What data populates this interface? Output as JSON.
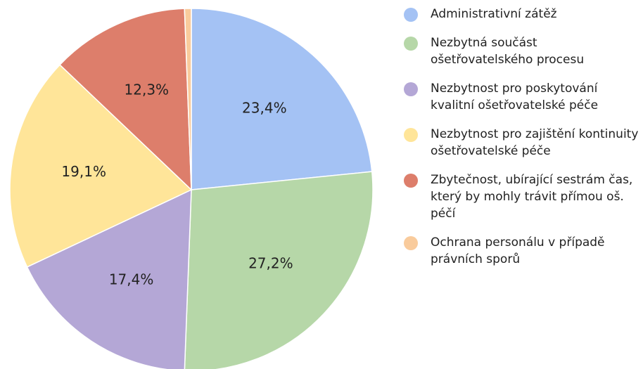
{
  "chart_data": {
    "type": "pie",
    "categories": [
      "Administrativní zátěž",
      "Nezbytná součást ošetřovatelského procesu",
      "Nezbytnost pro poskytování kvalitní ošetřovatelské péče",
      "Nezbytnost pro zajištění kontinuity ošetřovatelské péče",
      "Zbytečnost, ubírající sestrám čas, který by mohly trávit přímou oš. péčí",
      "Ochrana personálu v případě právních sporů"
    ],
    "values": [
      23.4,
      27.2,
      17.4,
      19.1,
      12.3,
      0.6
    ],
    "value_labels": [
      "23,4%",
      "27,2%",
      "17,4%",
      "19,1%",
      "12,3%",
      null
    ],
    "colors": [
      "#a4c2f4",
      "#b6d7a8",
      "#b4a7d6",
      "#ffe599",
      "#dd7e6b",
      "#f9cb9c"
    ],
    "legend": "right"
  }
}
